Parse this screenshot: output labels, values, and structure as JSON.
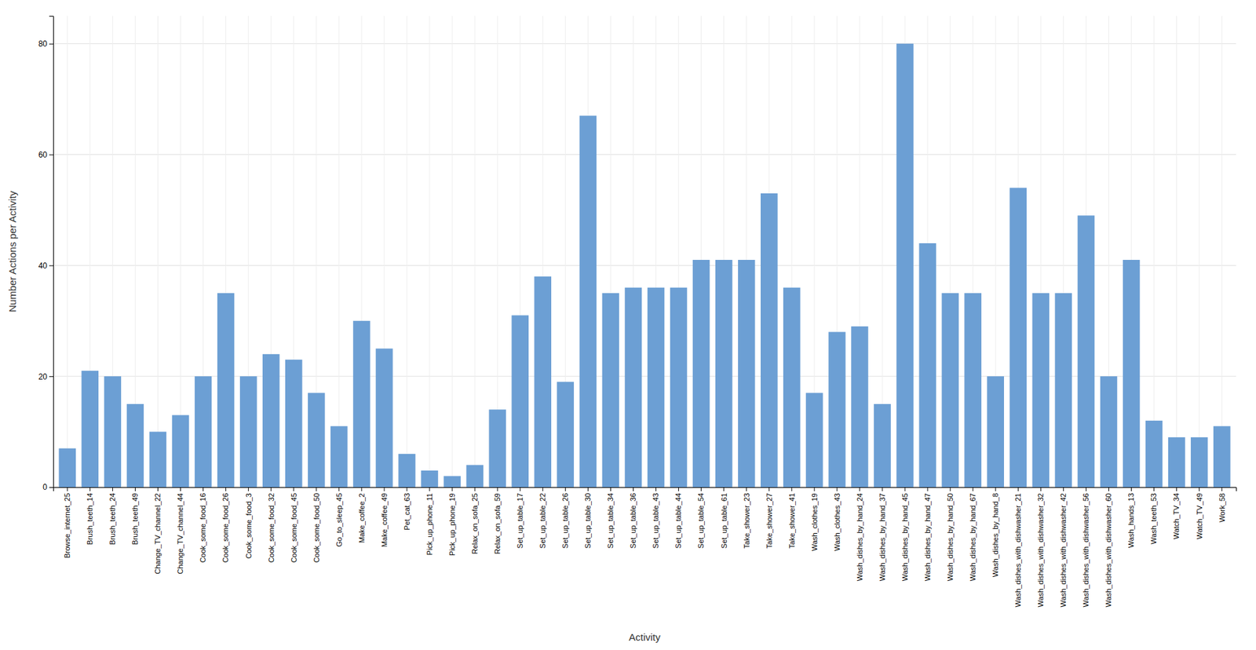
{
  "chart_data": {
    "type": "bar",
    "xlabel": "Activity",
    "ylabel": "Number Actions per Activity",
    "categories": [
      "Browse_internet_25",
      "Brush_teeth_14",
      "Brush_teeth_24",
      "Brush_teeth_49",
      "Change_TV_channel_22",
      "Change_TV_channel_44",
      "Cook_some_food_16",
      "Cook_some_food_26",
      "Cook_some_food_3",
      "Cook_some_food_32",
      "Cook_some_food_45",
      "Cook_some_food_50",
      "Go_to_sleep_45",
      "Make_coffee_2",
      "Make_coffee_49",
      "Pet_cat_63",
      "Pick_up_phone_11",
      "Pick_up_phone_19",
      "Relax_on_sofa_25",
      "Relax_on_sofa_59",
      "Set_up_table_17",
      "Set_up_table_22",
      "Set_up_table_26",
      "Set_up_table_30",
      "Set_up_table_34",
      "Set_up_table_36",
      "Set_up_table_43",
      "Set_up_table_44",
      "Set_up_table_54",
      "Set_up_table_61",
      "Take_shower_23",
      "Take_shower_27",
      "Take_shower_41",
      "Wash_clothes_19",
      "Wash_clothes_43",
      "Wash_dishes_by_hand_24",
      "Wash_dishes_by_hand_37",
      "Wash_dishes_by_hand_45",
      "Wash_dishes_by_hand_47",
      "Wash_dishes_by_hand_50",
      "Wash_dishes_by_hand_67",
      "Wash_dishes_by_hand_8",
      "Wash_dishes_with_dishwasher_21",
      "Wash_dishes_with_dishwasher_32",
      "Wash_dishes_with_dishwasher_42",
      "Wash_dishes_with_dishwasher_56",
      "Wash_dishes_with_dishwasher_60",
      "Wash_hands_13",
      "Wash_teeth_53",
      "Watch_TV_34",
      "Watch_TV_49",
      "Work_58"
    ],
    "values": [
      7,
      21,
      20,
      15,
      10,
      13,
      20,
      35,
      20,
      24,
      23,
      17,
      11,
      30,
      25,
      6,
      3,
      2,
      4,
      14,
      31,
      38,
      19,
      67,
      35,
      36,
      36,
      36,
      41,
      41,
      41,
      53,
      36,
      17,
      28,
      29,
      15,
      80,
      44,
      35,
      35,
      20,
      54,
      35,
      35,
      49,
      20,
      41,
      12,
      9,
      9,
      11
    ],
    "color": "#6C9FD4",
    "ylim": [
      0,
      85
    ],
    "yticks": [
      0,
      20,
      40,
      60,
      80
    ],
    "grid": true
  }
}
